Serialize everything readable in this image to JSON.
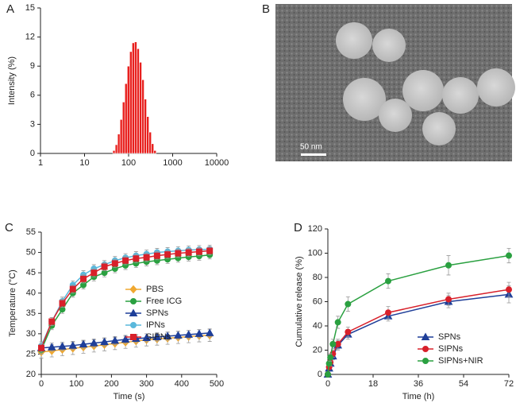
{
  "chart_data": [
    {
      "type": "histogram",
      "panel_label": "A",
      "y_label": "Intensity (%)",
      "color": "#e8201e",
      "xlog": true,
      "bins": [
        43.7,
        49.6,
        56.2,
        63.8,
        72.4,
        82.1,
        93.1,
        105.6,
        119.8,
        135.9,
        154.2,
        174.9,
        198.4,
        225.1,
        255.3,
        289.7,
        328.6,
        372.8,
        422.9
      ],
      "values": [
        0.3,
        0.9,
        2.0,
        3.5,
        5.3,
        7.2,
        9.0,
        10.5,
        11.4,
        11.5,
        10.8,
        9.4,
        7.6,
        5.6,
        3.8,
        2.2,
        1.0,
        0.3
      ],
      "xlim": [
        1,
        10000
      ],
      "xticks": [
        1,
        10,
        100,
        1000,
        10000
      ],
      "ylim": [
        0,
        15
      ],
      "yticks": [
        0,
        3,
        6,
        9,
        12,
        15
      ]
    },
    {
      "type": "line",
      "panel_label": "C",
      "x_label": "Time (s)",
      "y_label": "Temperature (°C)",
      "legend": "center right",
      "x": [
        0,
        30,
        60,
        90,
        120,
        150,
        180,
        210,
        240,
        270,
        300,
        330,
        360,
        390,
        420,
        450,
        480
      ],
      "series": [
        {
          "name": "PBS",
          "color": "#f0a830",
          "marker": "diamond",
          "values": [
            25.5,
            25.8,
            26.1,
            26.4,
            26.7,
            27.0,
            27.3,
            27.6,
            27.9,
            28.2,
            28.5,
            28.7,
            28.9,
            29.1,
            29.3,
            29.5,
            29.6
          ],
          "errors": [
            1.5,
            1.5,
            1.5,
            1.5,
            1.5,
            1.5,
            1.5,
            1.5,
            1.5,
            1.5,
            1.5,
            1.5,
            1.5,
            1.5,
            1.5,
            1.5,
            1.5
          ]
        },
        {
          "name": "Free ICG",
          "color": "#2aa040",
          "marker": "circle",
          "values": [
            26,
            32,
            36,
            40,
            42,
            44,
            45,
            46,
            46.8,
            47.3,
            47.7,
            48,
            48.3,
            48.6,
            48.9,
            49.1,
            49.4
          ],
          "errors": [
            1,
            1,
            1,
            1,
            1,
            1,
            1,
            1,
            1,
            1,
            1,
            1,
            1,
            1,
            1,
            1,
            1
          ]
        },
        {
          "name": "SPNs",
          "color": "#1f3f99",
          "marker": "triangle",
          "values": [
            26.5,
            26.7,
            26.9,
            27.1,
            27.4,
            27.7,
            28.0,
            28.3,
            28.6,
            28.8,
            29.0,
            29.2,
            29.4,
            29.6,
            29.8,
            30.0,
            30.2
          ],
          "errors": [
            1,
            1,
            1,
            1,
            1,
            1,
            1,
            1,
            1,
            1,
            1,
            1,
            1,
            1,
            1,
            1,
            1
          ]
        },
        {
          "name": "IPNs",
          "color": "#5ab8dc",
          "marker": "circle",
          "values": [
            27,
            33,
            38,
            42,
            44.5,
            46,
            47,
            48,
            48.7,
            49.2,
            49.6,
            50,
            50.2,
            50.4,
            50.6,
            50.7,
            50.8
          ],
          "errors": [
            1,
            1,
            1,
            1,
            1,
            1,
            1,
            1,
            1,
            1,
            1,
            1,
            1,
            1,
            1,
            1,
            1
          ]
        },
        {
          "name": "SIPNs",
          "color": "#d8202a",
          "marker": "square",
          "values": [
            26.5,
            33,
            37.5,
            41,
            43.5,
            45,
            46.5,
            47.3,
            48,
            48.5,
            48.8,
            49.2,
            49.5,
            49.8,
            50,
            50.2,
            50.4
          ],
          "errors": [
            1,
            1,
            1,
            1,
            1,
            1,
            1,
            1,
            1,
            1,
            1,
            1,
            1,
            1,
            1,
            1,
            1
          ]
        }
      ],
      "xlim": [
        0,
        500
      ],
      "xticks": [
        0,
        100,
        200,
        300,
        400,
        500
      ],
      "ylim": [
        20,
        55
      ],
      "yticks": [
        20,
        25,
        30,
        35,
        40,
        45,
        50,
        55
      ]
    },
    {
      "type": "line",
      "panel_label": "D",
      "x_label": "Time (h)",
      "y_label": "Cumulative release (%)",
      "legend": "lower right",
      "x": [
        0,
        0.5,
        1,
        2,
        4,
        8,
        24,
        48,
        72
      ],
      "series": [
        {
          "name": "SPNs",
          "color": "#1f3f99",
          "marker": "triangle",
          "values": [
            0,
            5,
            9,
            15,
            24,
            33,
            48,
            60,
            66
          ],
          "errors": [
            1,
            2,
            3,
            3,
            4,
            4,
            4,
            5,
            7
          ]
        },
        {
          "name": "SIPNs",
          "color": "#d8202a",
          "marker": "circle",
          "values": [
            0,
            6,
            10,
            17,
            25,
            35,
            51,
            62,
            70
          ],
          "errors": [
            1,
            2,
            3,
            3,
            4,
            4,
            5,
            5,
            6
          ]
        },
        {
          "name": "SIPNs+NIR",
          "color": "#2aa040",
          "marker": "circle",
          "values": [
            0,
            9,
            14,
            25,
            43,
            58,
            77,
            90,
            98
          ],
          "errors": [
            1,
            2,
            3,
            4,
            5,
            6,
            6,
            8,
            6
          ]
        }
      ],
      "xlim": [
        0,
        72
      ],
      "xticks": [
        0,
        18,
        36,
        54,
        72
      ],
      "ylim": [
        0,
        120
      ],
      "yticks": [
        0,
        20,
        40,
        60,
        80,
        100,
        120
      ]
    }
  ],
  "image_panel": {
    "label": "B",
    "scale_bar": "50 nm"
  }
}
